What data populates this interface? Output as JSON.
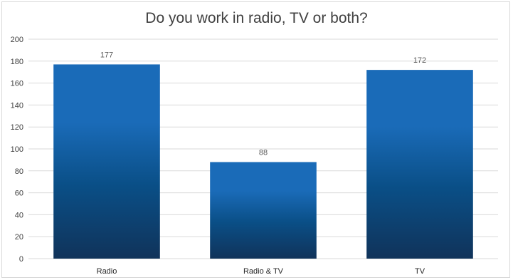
{
  "chart_data": {
    "type": "bar",
    "title": "Do you work in radio, TV or both?",
    "categories": [
      "Radio",
      "Radio & TV",
      "TV"
    ],
    "values": [
      177,
      88,
      172
    ],
    "data_labels": [
      "177",
      "88",
      "172"
    ],
    "ylim": [
      0,
      200
    ],
    "yticks": [
      "0",
      "20",
      "40",
      "60",
      "80",
      "100",
      "120",
      "140",
      "160",
      "180",
      "200"
    ],
    "xlabel": "",
    "ylabel": "",
    "grid": true,
    "legend": "none",
    "colors": {
      "bar_top": "#1a6bb8",
      "bar_mid": "#0a4f87",
      "bar_bottom": "#10335a",
      "grid": "#d9d9d9"
    }
  }
}
